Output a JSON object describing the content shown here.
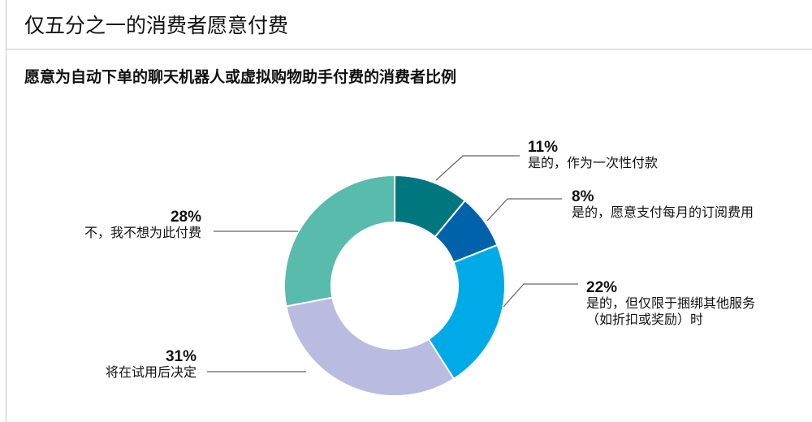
{
  "header": {
    "title": "仅五分之一的消费者愿意付费"
  },
  "chart_data": {
    "type": "pie",
    "donut": true,
    "title": "愿意为自动下单的聊天机器人或虚拟购物助手付费的消费者比例",
    "slices": [
      {
        "value": 11,
        "label": "11%",
        "lines": [
          "是的，作为一次性付款"
        ],
        "color": "#00777f"
      },
      {
        "value": 8,
        "label": "8%",
        "lines": [
          "是的，愿意支付每月的订阅费用"
        ],
        "color": "#0062ab"
      },
      {
        "value": 22,
        "label": "22%",
        "lines": [
          "是的，但仅限于捆绑其他服务",
          "（如折扣或奖励）时"
        ],
        "color": "#00aae7"
      },
      {
        "value": 31,
        "label": "31%",
        "lines": [
          "将在试用后决定"
        ],
        "color": "#b9bce0"
      },
      {
        "value": 28,
        "label": "28%",
        "lines": [
          "不，我不想为此付费"
        ],
        "color": "#58bbab"
      }
    ]
  }
}
